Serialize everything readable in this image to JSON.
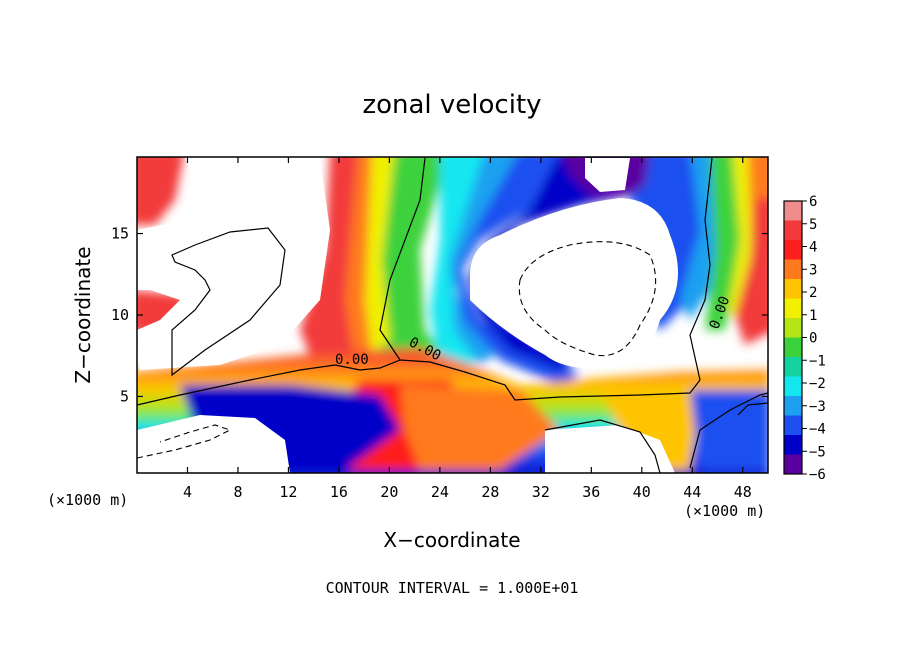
{
  "chart_data": {
    "type": "heatmap",
    "title": "zonal velocity",
    "xlabel": "X−coordinate",
    "ylabel": "Z−coordinate",
    "x_unit_label": "(×1000 m)",
    "y_unit_label": "(×1000 m)",
    "xlim": [
      0,
      50
    ],
    "ylim": [
      0.3,
      19.7
    ],
    "x_ticks": [
      4,
      8,
      12,
      16,
      20,
      24,
      28,
      32,
      36,
      40,
      44,
      48
    ],
    "y_ticks": [
      5,
      10,
      15
    ],
    "colorbar": {
      "min": -6,
      "max": 6,
      "ticks": [
        6,
        5,
        4,
        3,
        2,
        1,
        0,
        -1,
        -2,
        -3,
        -4,
        -5,
        -6
      ],
      "tick_labels": [
        "6",
        "5",
        "4",
        "3",
        "2",
        "1",
        "0",
        "−1",
        "−2",
        "−3",
        "−4",
        "−5",
        "−6"
      ],
      "colors": [
        "#f08c8c",
        "#f23a3a",
        "#ff1e1e",
        "#ff7a1e",
        "#ffc400",
        "#f0f000",
        "#b4e614",
        "#3cd23c",
        "#14d2a0",
        "#14e6f0",
        "#1ea0f0",
        "#1e50f0",
        "#0000c8",
        "#5a00a0"
      ]
    },
    "contour_labels": [
      "0.00",
      "0.00",
      "0.00"
    ],
    "footer": "CONTOUR INTERVAL = 1.000E+01"
  }
}
